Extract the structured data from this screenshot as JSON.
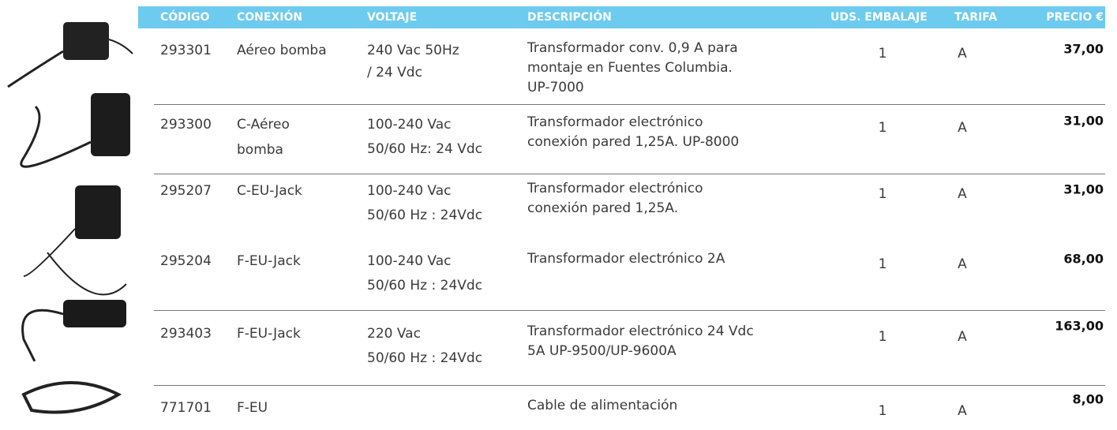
{
  "table": {
    "columns": [
      "CÓDIGO",
      "CONEXIÓN",
      "VOLTAJE",
      "DESCRIPCIÓN",
      "UDS. EMBALAJE",
      "TARIFA",
      "PRECIO €"
    ],
    "rows": [
      {
        "code": "293301",
        "connection": [
          "Aéreo bomba"
        ],
        "voltage": [
          "240 Vac 50Hz",
          "/ 24 Vdc"
        ],
        "description": [
          "Transformador conv. 0,9 A para",
          "montaje en Fuentes Columbia.",
          "UP-7000"
        ],
        "units": "1",
        "rate": "A",
        "price": "37,00"
      },
      {
        "code": "293300",
        "connection": [
          "C-Aéreo",
          "bomba"
        ],
        "voltage": [
          "100-240 Vac",
          "50/60 Hz: 24 Vdc"
        ],
        "description": [
          "Transformador electrónico",
          "conexión pared 1,25A. UP-8000"
        ],
        "units": "1",
        "rate": "A",
        "price": "31,00"
      },
      {
        "code": "295207",
        "connection": [
          "C-EU-Jack"
        ],
        "voltage": [
          "100-240 Vac",
          "50/60 Hz : 24Vdc"
        ],
        "description": [
          "Transformador electrónico",
          "conexión pared 1,25A."
        ],
        "units": "1",
        "rate": "A",
        "price": "31,00"
      },
      {
        "code": "295204",
        "connection": [
          "F-EU-Jack"
        ],
        "voltage": [
          "100-240 Vac",
          "50/60 Hz : 24Vdc"
        ],
        "description": [
          "Transformador electrónico 2A"
        ],
        "units": "1",
        "rate": "A",
        "price": "68,00"
      },
      {
        "code": "293403",
        "connection": [
          "F-EU-Jack"
        ],
        "voltage": [
          "220 Vac",
          "50/60 Hz : 24Vdc"
        ],
        "description": [
          "Transformador electrónico 24 Vdc",
          "5A UP-9500/UP-9600A"
        ],
        "units": "1",
        "rate": "A",
        "price": "163,00"
      },
      {
        "code": "771701",
        "connection": [
          "F-EU"
        ],
        "voltage": [],
        "description": [
          "Cable de alimentación"
        ],
        "units": "1",
        "rate": "A",
        "price": "8,00"
      }
    ]
  }
}
